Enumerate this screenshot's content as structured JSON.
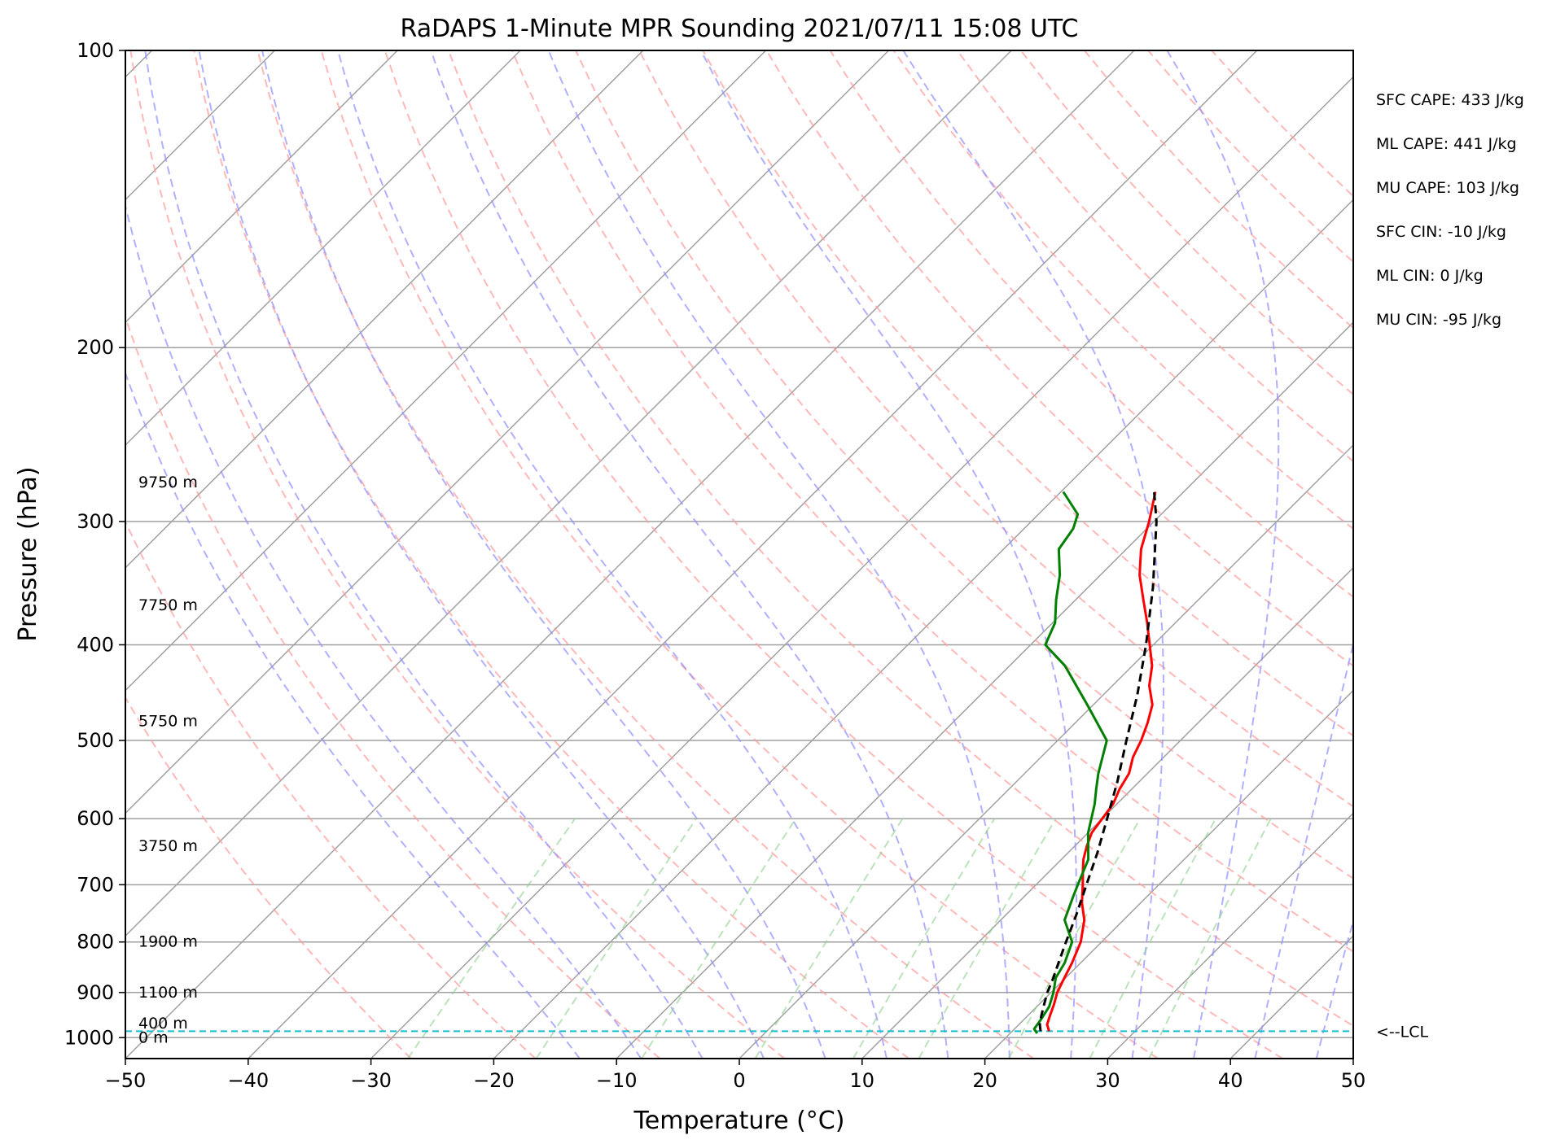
{
  "chart_data": {
    "type": "line",
    "subtype": "skew-T log-P diagram",
    "title": "RaDAPS 1-Minute MPR Sounding 2021/07/11 15:08 UTC",
    "xlabel": "Temperature (°C)",
    "ylabel": "Pressure (hPa)",
    "xlim": [
      -50,
      50
    ],
    "ylim_hpa": [
      1050,
      100
    ],
    "y_scale": "log",
    "x_ticks": [
      "−50",
      "−40",
      "−30",
      "−20",
      "−10",
      "0",
      "10",
      "20",
      "30",
      "40",
      "50"
    ],
    "x_tick_values": [
      -50,
      -40,
      -30,
      -20,
      -10,
      0,
      10,
      20,
      30,
      40,
      50
    ],
    "y_ticks": [
      "100",
      "200",
      "300",
      "400",
      "500",
      "600",
      "700",
      "800",
      "900",
      "1000"
    ],
    "y_tick_values": [
      100,
      200,
      300,
      400,
      500,
      600,
      700,
      800,
      900,
      1000
    ],
    "grid": true,
    "series": [
      {
        "key": "temperature",
        "color": "#ff0000",
        "pressure": [
          985,
          970,
          950,
          925,
          900,
          870,
          840,
          800,
          760,
          730,
          700,
          680,
          660,
          640,
          620,
          600,
          580,
          560,
          540,
          520,
          500,
          480,
          460,
          440,
          420,
          400,
          380,
          360,
          340,
          320,
          300,
          280
        ],
        "temp": [
          23.0,
          22.3,
          21.8,
          21.2,
          20.5,
          19.9,
          19.3,
          18.3,
          16.8,
          15.2,
          13.8,
          12.8,
          11.8,
          11.0,
          10.3,
          10.0,
          9.7,
          9.0,
          8.5,
          7.5,
          6.8,
          5.9,
          4.8,
          3.0,
          1.6,
          -0.3,
          -2.3,
          -4.5,
          -6.8,
          -8.8,
          -10.4,
          -12.3
        ]
      },
      {
        "key": "dewpoint",
        "color": "#008000",
        "pressure": [
          990,
          980,
          960,
          930,
          900,
          870,
          840,
          800,
          760,
          720,
          700,
          660,
          620,
          580,
          560,
          540,
          500,
          460,
          420,
          400,
          380,
          360,
          340,
          320,
          305,
          295,
          280
        ],
        "temp": [
          22.2,
          21.6,
          21.4,
          21.0,
          20.2,
          19.2,
          18.7,
          17.6,
          15.2,
          14.0,
          13.4,
          12.2,
          10.0,
          8.2,
          7.1,
          6.0,
          4.0,
          -0.5,
          -5.5,
          -8.8,
          -9.8,
          -11.6,
          -13.3,
          -15.5,
          -16.0,
          -16.8,
          -19.8
        ]
      },
      {
        "key": "parcel",
        "color": "#000000",
        "dashed": true,
        "pressure": [
          985,
          970,
          950,
          925,
          900,
          870,
          840,
          800,
          750,
          700,
          650,
          600,
          550,
          500,
          450,
          400,
          350,
          300,
          280
        ],
        "temp": [
          22.3,
          21.7,
          21.1,
          20.4,
          19.7,
          19.0,
          18.2,
          17.1,
          15.7,
          14.1,
          12.4,
          10.4,
          8.2,
          5.6,
          2.8,
          -0.6,
          -4.7,
          -9.8,
          -12.4
        ]
      }
    ],
    "lcl_pressure": 985,
    "lcl_label": "<--LCL",
    "height_labels": [
      {
        "text": "0 m",
        "pressure": 1000
      },
      {
        "text": "400 m",
        "pressure": 968
      },
      {
        "text": "1100 m",
        "pressure": 900
      },
      {
        "text": "1900 m",
        "pressure": 800
      },
      {
        "text": "3750 m",
        "pressure": 640
      },
      {
        "text": "5750 m",
        "pressure": 478
      },
      {
        "text": "7750 m",
        "pressure": 365
      },
      {
        "text": "9750 m",
        "pressure": 274
      }
    ],
    "stats": [
      "SFC CAPE: 433 J/kg",
      "ML CAPE: 441 J/kg",
      "MU CAPE: 103 J/kg",
      "SFC CIN: -10 J/kg",
      "ML CIN: 0 J/kg",
      "MU CIN: -95 J/kg"
    ],
    "reference_lines": {
      "dry_adiabat_theta_k": [
        243,
        253,
        263,
        273,
        283,
        293,
        303,
        313,
        323,
        333,
        343,
        353,
        363,
        373,
        383,
        393,
        403,
        413,
        423,
        433,
        443
      ],
      "moist_adiabat_t0_c": [
        -15,
        -10,
        -5,
        0,
        5,
        10,
        15,
        20,
        25,
        30,
        35,
        40,
        45
      ],
      "mixing_ratio_g_per_kg": [
        0.4,
        1,
        2,
        4,
        7,
        10,
        16,
        24,
        32
      ],
      "colors": {
        "isotherm": "#a0a0a0",
        "dry_adiabat": "#ff9a9a",
        "moist_adiabat": "#8f8fff",
        "mixing_ratio": "#8fce8f",
        "lcl": "#17becf"
      }
    }
  }
}
